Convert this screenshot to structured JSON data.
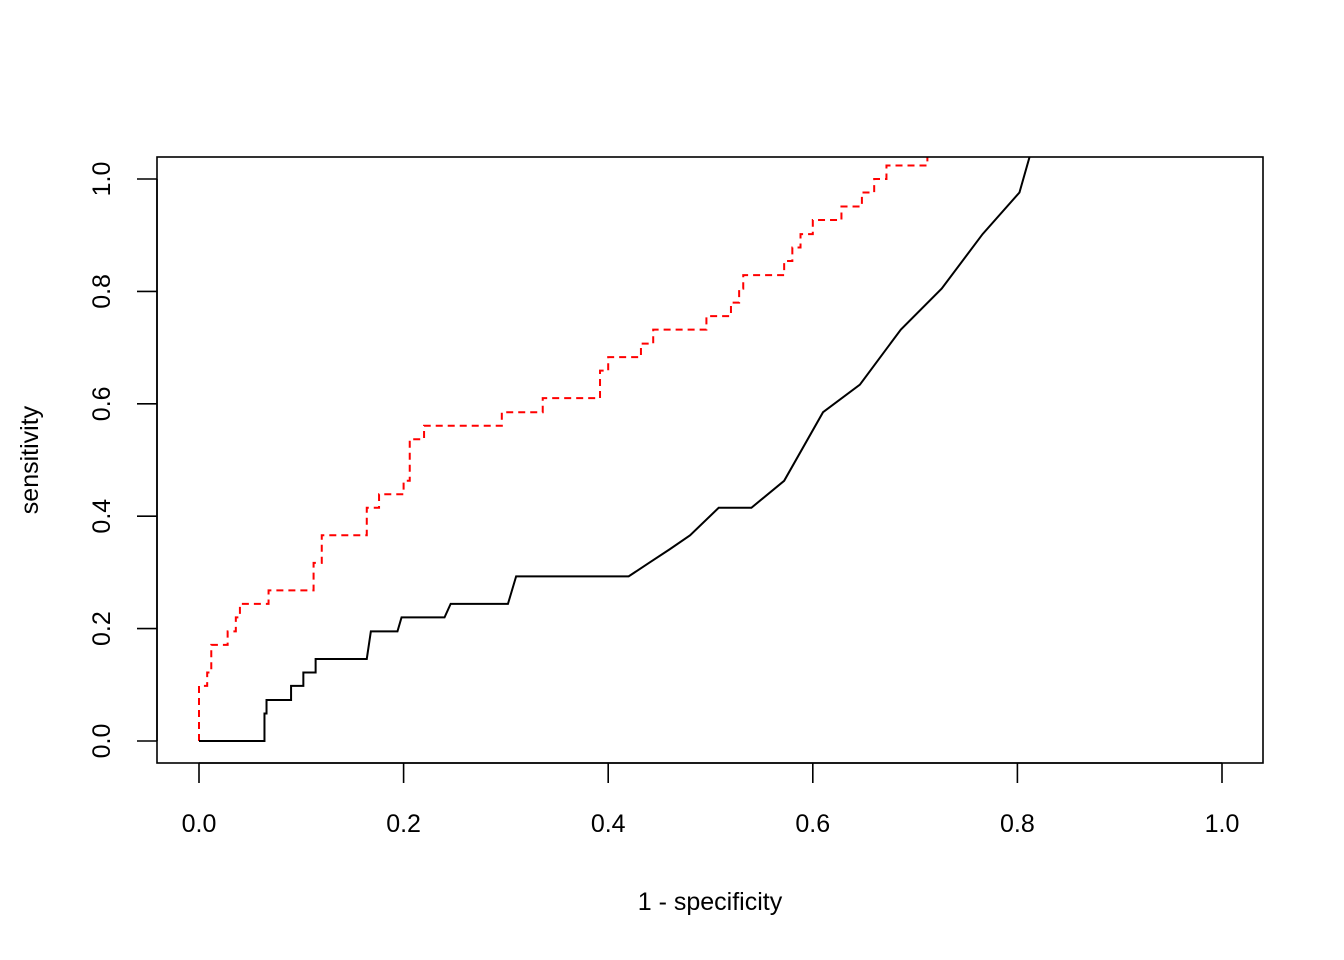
{
  "chart_data": {
    "type": "line",
    "title": "",
    "xlabel": "1 - specificity",
    "ylabel": "sensitivity",
    "xlim": [
      0,
      1
    ],
    "ylim": [
      0,
      1
    ],
    "xticks": [
      "0.0",
      "0.2",
      "0.4",
      "0.6",
      "0.8",
      "1.0"
    ],
    "yticks": [
      "0.0",
      "0.2",
      "0.4",
      "0.6",
      "0.8",
      "1.0"
    ],
    "grid": false,
    "legend": "none",
    "series": [
      {
        "color": "#ff0000",
        "linestyle": "dashed",
        "points": [
          [
            0.0,
            0.0
          ],
          [
            0.0,
            0.098
          ],
          [
            0.008,
            0.098
          ],
          [
            0.008,
            0.122
          ],
          [
            0.012,
            0.122
          ],
          [
            0.012,
            0.171
          ],
          [
            0.028,
            0.171
          ],
          [
            0.028,
            0.195
          ],
          [
            0.036,
            0.195
          ],
          [
            0.036,
            0.22
          ],
          [
            0.04,
            0.22
          ],
          [
            0.04,
            0.244
          ],
          [
            0.068,
            0.244
          ],
          [
            0.068,
            0.268
          ],
          [
            0.112,
            0.268
          ],
          [
            0.112,
            0.317
          ],
          [
            0.12,
            0.317
          ],
          [
            0.12,
            0.366
          ],
          [
            0.164,
            0.366
          ],
          [
            0.164,
            0.415
          ],
          [
            0.176,
            0.415
          ],
          [
            0.176,
            0.439
          ],
          [
            0.2,
            0.439
          ],
          [
            0.2,
            0.463
          ],
          [
            0.206,
            0.463
          ],
          [
            0.206,
            0.537
          ],
          [
            0.22,
            0.537
          ],
          [
            0.22,
            0.561
          ],
          [
            0.296,
            0.561
          ],
          [
            0.296,
            0.585
          ],
          [
            0.336,
            0.585
          ],
          [
            0.336,
            0.61
          ],
          [
            0.392,
            0.61
          ],
          [
            0.392,
            0.659
          ],
          [
            0.4,
            0.659
          ],
          [
            0.4,
            0.683
          ],
          [
            0.432,
            0.683
          ],
          [
            0.432,
            0.707
          ],
          [
            0.444,
            0.707
          ],
          [
            0.444,
            0.732
          ],
          [
            0.496,
            0.732
          ],
          [
            0.496,
            0.756
          ],
          [
            0.52,
            0.756
          ],
          [
            0.52,
            0.78
          ],
          [
            0.528,
            0.78
          ],
          [
            0.528,
            0.805
          ],
          [
            0.532,
            0.805
          ],
          [
            0.532,
            0.829
          ],
          [
            0.572,
            0.829
          ],
          [
            0.572,
            0.854
          ],
          [
            0.58,
            0.854
          ],
          [
            0.58,
            0.878
          ],
          [
            0.588,
            0.878
          ],
          [
            0.588,
            0.902
          ],
          [
            0.6,
            0.902
          ],
          [
            0.6,
            0.927
          ],
          [
            0.628,
            0.927
          ],
          [
            0.628,
            0.951
          ],
          [
            0.648,
            0.951
          ],
          [
            0.648,
            0.976
          ],
          [
            0.66,
            0.976
          ],
          [
            0.66,
            1.0
          ],
          [
            0.672,
            1.0
          ],
          [
            0.672,
            1.024
          ],
          [
            0.712,
            1.024
          ],
          [
            0.712,
            1.04
          ]
        ]
      },
      {
        "color": "#000000",
        "linestyle": "solid",
        "points": [
          [
            0.0,
            0.0
          ],
          [
            0.064,
            0.0
          ],
          [
            0.064,
            0.049
          ],
          [
            0.066,
            0.049
          ],
          [
            0.066,
            0.073
          ],
          [
            0.09,
            0.073
          ],
          [
            0.09,
            0.098
          ],
          [
            0.102,
            0.098
          ],
          [
            0.102,
            0.122
          ],
          [
            0.114,
            0.122
          ],
          [
            0.114,
            0.146
          ],
          [
            0.164,
            0.146
          ],
          [
            0.168,
            0.195
          ],
          [
            0.194,
            0.195
          ],
          [
            0.198,
            0.22
          ],
          [
            0.24,
            0.22
          ],
          [
            0.246,
            0.244
          ],
          [
            0.302,
            0.244
          ],
          [
            0.31,
            0.293
          ],
          [
            0.42,
            0.293
          ],
          [
            0.44,
            0.317
          ],
          [
            0.46,
            0.341
          ],
          [
            0.48,
            0.366
          ],
          [
            0.508,
            0.415
          ],
          [
            0.54,
            0.415
          ],
          [
            0.572,
            0.463
          ],
          [
            0.61,
            0.585
          ],
          [
            0.646,
            0.634
          ],
          [
            0.686,
            0.732
          ],
          [
            0.726,
            0.805
          ],
          [
            0.766,
            0.902
          ],
          [
            0.802,
            0.976
          ],
          [
            0.812,
            1.04
          ]
        ]
      }
    ]
  }
}
